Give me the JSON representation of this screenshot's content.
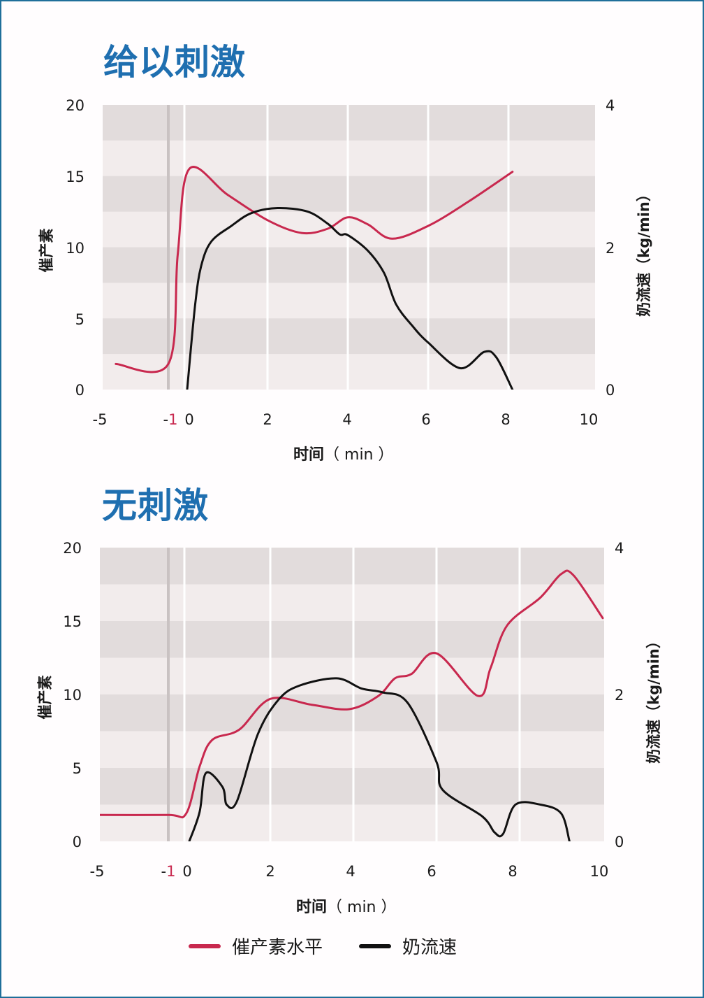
{
  "legend": {
    "oxytocin": {
      "label": "催产素水平",
      "color": "#c8284e"
    },
    "milkflow": {
      "label": "奶流速",
      "color": "#111111"
    }
  },
  "charts": [
    {
      "title": "给以刺激",
      "ylabel_left": "催产素",
      "ylabel_right": "奶流速（kg/min）",
      "xlabel_bold": "时间",
      "xlabel_unit": "（ min ）",
      "y_left_ticks": [
        "0",
        "5",
        "10",
        "15",
        "20"
      ],
      "y_right_ticks": [
        "0",
        "2",
        "4"
      ],
      "x_ticks": [
        "-5",
        "-1",
        "0",
        "2",
        "4",
        "6",
        "8",
        "10"
      ]
    },
    {
      "title": "无刺激",
      "ylabel_left": "催产素",
      "ylabel_right": "奶流速（kg/min）",
      "xlabel_bold": "时间",
      "xlabel_unit": "（ min ）",
      "y_left_ticks": [
        "0",
        "5",
        "10",
        "15",
        "20"
      ],
      "y_right_ticks": [
        "0",
        "2",
        "4"
      ],
      "x_ticks": [
        "-5",
        "-1",
        "0",
        "2",
        "4",
        "6",
        "8",
        "10"
      ]
    }
  ],
  "chart_data": [
    {
      "type": "line",
      "title": "给以刺激",
      "xlabel": "时间（min）",
      "ylabel": "催产素",
      "ylabel_right": "奶流速（kg/min）",
      "xlim": [
        -5,
        10
      ],
      "ylim": [
        0,
        20
      ],
      "ylim_right": [
        0,
        4
      ],
      "x_ticks": [
        -5,
        -1,
        0,
        2,
        4,
        6,
        8,
        10
      ],
      "y_ticks": [
        0,
        5,
        10,
        15,
        20
      ],
      "y_right_ticks": [
        0,
        2,
        4
      ],
      "grid": "alternating horizontal bands, vertical lines at 0,2,4,6,8; gray marker at -1",
      "legend_position": "bottom",
      "series": [
        {
          "name": "催产素水平",
          "axis": "left",
          "color": "#c8284e",
          "x": [
            -4.2,
            -1.0,
            -0.5,
            0.05,
            1.0,
            2.0,
            2.85,
            3.5,
            4.0,
            4.5,
            5.1,
            6.0,
            7.0,
            8.1
          ],
          "y": [
            1.8,
            1.8,
            9.5,
            15.5,
            13.7,
            11.9,
            11.0,
            11.3,
            12.1,
            11.6,
            10.6,
            11.5,
            13.2,
            15.3
          ]
        },
        {
          "name": "奶流速",
          "axis": "right",
          "color": "#111111",
          "x": [
            0.0,
            0.2,
            0.35,
            0.6,
            1.1,
            1.6,
            2.25,
            3.0,
            3.5,
            3.8,
            4.0,
            4.5,
            4.9,
            5.2,
            5.6,
            6.0,
            6.8,
            7.4,
            7.7,
            8.1
          ],
          "y": [
            0.0,
            1.2,
            1.74,
            2.08,
            2.3,
            2.48,
            2.55,
            2.5,
            2.33,
            2.18,
            2.17,
            1.95,
            1.64,
            1.2,
            0.9,
            0.66,
            0.3,
            0.53,
            0.45,
            0.0
          ]
        }
      ]
    },
    {
      "type": "line",
      "title": "无刺激",
      "xlabel": "时间（min）",
      "ylabel": "催产素",
      "ylabel_right": "奶流速（kg/min）",
      "xlim": [
        -5,
        10
      ],
      "ylim": [
        0,
        20
      ],
      "ylim_right": [
        0,
        4
      ],
      "x_ticks": [
        -5,
        -1,
        0,
        2,
        4,
        6,
        8,
        10
      ],
      "y_ticks": [
        0,
        5,
        10,
        15,
        20
      ],
      "y_right_ticks": [
        0,
        2,
        4
      ],
      "grid": "alternating horizontal bands, vertical lines at 0,2,4,6,8; gray marker at -1",
      "legend_position": "bottom",
      "series": [
        {
          "name": "催产素水平",
          "axis": "left",
          "color": "#c8284e",
          "x": [
            -5.0,
            -1.0,
            -0.05,
            0.3,
            0.6,
            1.25,
            2.0,
            3.0,
            3.9,
            4.6,
            5.0,
            5.4,
            6.0,
            7.0,
            7.3,
            7.7,
            8.5,
            9.0,
            9.3,
            10.0
          ],
          "y": [
            1.8,
            1.8,
            1.9,
            5.1,
            6.9,
            7.6,
            9.7,
            9.3,
            9.0,
            9.9,
            11.1,
            11.4,
            12.8,
            9.9,
            11.8,
            14.7,
            16.6,
            18.2,
            18.1,
            15.2
          ]
        },
        {
          "name": "奶流速",
          "axis": "right",
          "color": "#111111",
          "x": [
            0.05,
            0.3,
            0.45,
            0.85,
            0.95,
            1.2,
            1.7,
            2.2,
            2.7,
            3.6,
            4.2,
            4.7,
            5.3,
            6.0,
            6.15,
            7.1,
            7.4,
            7.6,
            7.9,
            8.5,
            9.0,
            9.2
          ],
          "y": [
            0.0,
            0.4,
            0.93,
            0.74,
            0.5,
            0.55,
            1.46,
            1.93,
            2.12,
            2.22,
            2.08,
            2.03,
            1.89,
            1.08,
            0.7,
            0.34,
            0.12,
            0.1,
            0.5,
            0.5,
            0.38,
            0.0
          ]
        }
      ]
    }
  ]
}
